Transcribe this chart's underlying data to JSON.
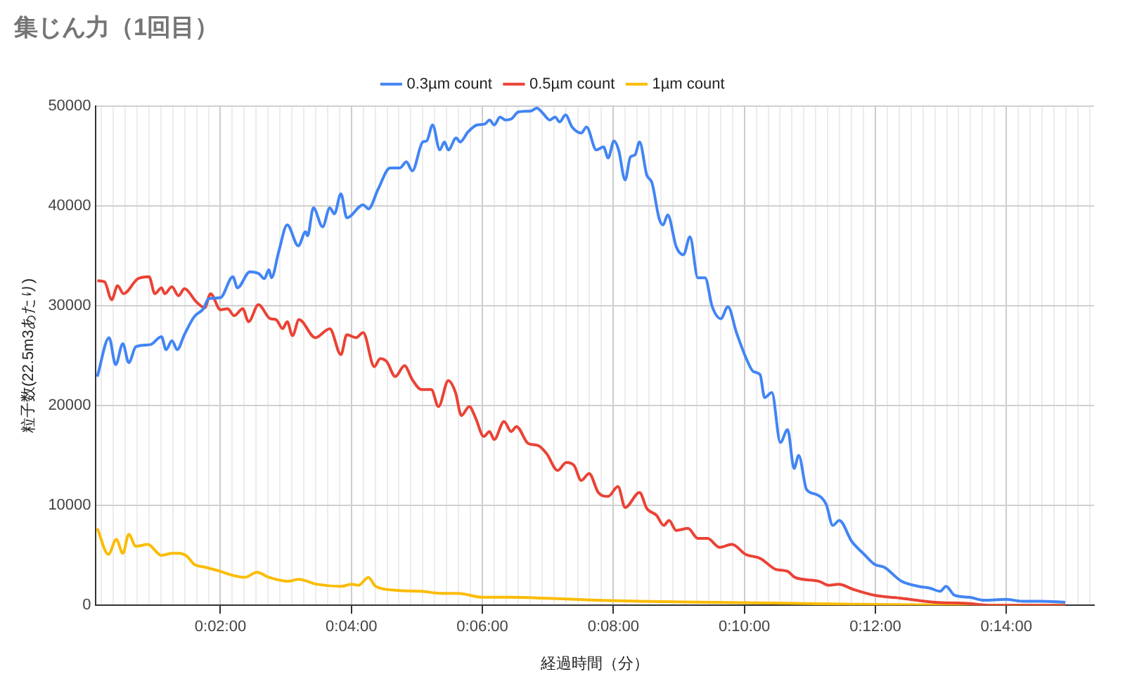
{
  "chart_data": {
    "type": "line",
    "title": "集じん力（1回目）",
    "xlabel": "経過時間（分）",
    "ylabel": "粒子数(22.5m3あたり)",
    "xlim": [
      0.09,
      15.34
    ],
    "ylim": [
      0,
      50000
    ],
    "yticks": [
      0,
      10000,
      20000,
      30000,
      40000,
      50000
    ],
    "xticks": [
      {
        "value": 0.182,
        "label": null
      },
      {
        "value": 0.364,
        "label": null
      },
      {
        "value": 0.545,
        "label": null
      },
      {
        "value": 0.727,
        "label": null
      },
      {
        "value": 0.909,
        "label": null
      },
      {
        "value": 1.091,
        "label": null
      },
      {
        "value": 1.273,
        "label": null
      },
      {
        "value": 1.455,
        "label": null
      },
      {
        "value": 1.636,
        "label": null
      },
      {
        "value": 1.818,
        "label": null
      },
      {
        "value": 2,
        "label": "0:02:00"
      },
      {
        "value": 2.182,
        "label": null
      },
      {
        "value": 2.364,
        "label": null
      },
      {
        "value": 2.545,
        "label": null
      },
      {
        "value": 2.727,
        "label": null
      },
      {
        "value": 2.909,
        "label": null
      },
      {
        "value": 3.091,
        "label": null
      },
      {
        "value": 3.273,
        "label": null
      },
      {
        "value": 3.455,
        "label": null
      },
      {
        "value": 3.636,
        "label": null
      },
      {
        "value": 3.818,
        "label": null
      },
      {
        "value": 4,
        "label": "0:04:00"
      },
      {
        "value": 4.182,
        "label": null
      },
      {
        "value": 4.364,
        "label": null
      },
      {
        "value": 4.545,
        "label": null
      },
      {
        "value": 4.727,
        "label": null
      },
      {
        "value": 4.909,
        "label": null
      },
      {
        "value": 5.091,
        "label": null
      },
      {
        "value": 5.273,
        "label": null
      },
      {
        "value": 5.455,
        "label": null
      },
      {
        "value": 5.636,
        "label": null
      },
      {
        "value": 5.818,
        "label": null
      },
      {
        "value": 6,
        "label": "0:06:00"
      },
      {
        "value": 6.182,
        "label": null
      },
      {
        "value": 6.364,
        "label": null
      },
      {
        "value": 6.545,
        "label": null
      },
      {
        "value": 6.727,
        "label": null
      },
      {
        "value": 6.909,
        "label": null
      },
      {
        "value": 7.091,
        "label": null
      },
      {
        "value": 7.273,
        "label": null
      },
      {
        "value": 7.455,
        "label": null
      },
      {
        "value": 7.636,
        "label": null
      },
      {
        "value": 7.818,
        "label": null
      },
      {
        "value": 8,
        "label": "0:08:00"
      },
      {
        "value": 8.182,
        "label": null
      },
      {
        "value": 8.364,
        "label": null
      },
      {
        "value": 8.545,
        "label": null
      },
      {
        "value": 8.727,
        "label": null
      },
      {
        "value": 8.909,
        "label": null
      },
      {
        "value": 9.091,
        "label": null
      },
      {
        "value": 9.273,
        "label": null
      },
      {
        "value": 9.455,
        "label": null
      },
      {
        "value": 9.636,
        "label": null
      },
      {
        "value": 9.818,
        "label": null
      },
      {
        "value": 10,
        "label": "0:10:00"
      },
      {
        "value": 10.182,
        "label": null
      },
      {
        "value": 10.364,
        "label": null
      },
      {
        "value": 10.545,
        "label": null
      },
      {
        "value": 10.727,
        "label": null
      },
      {
        "value": 10.909,
        "label": null
      },
      {
        "value": 11.091,
        "label": null
      },
      {
        "value": 11.273,
        "label": null
      },
      {
        "value": 11.455,
        "label": null
      },
      {
        "value": 11.636,
        "label": null
      },
      {
        "value": 11.818,
        "label": null
      },
      {
        "value": 12,
        "label": "0:12:00"
      },
      {
        "value": 12.182,
        "label": null
      },
      {
        "value": 12.364,
        "label": null
      },
      {
        "value": 12.545,
        "label": null
      },
      {
        "value": 12.727,
        "label": null
      },
      {
        "value": 12.909,
        "label": null
      },
      {
        "value": 13.091,
        "label": null
      },
      {
        "value": 13.273,
        "label": null
      },
      {
        "value": 13.455,
        "label": null
      },
      {
        "value": 13.636,
        "label": null
      },
      {
        "value": 13.818,
        "label": null
      },
      {
        "value": 14,
        "label": "0:14:00"
      },
      {
        "value": 14.182,
        "label": null
      },
      {
        "value": 14.364,
        "label": null
      },
      {
        "value": 14.545,
        "label": null
      },
      {
        "value": 14.727,
        "label": null
      },
      {
        "value": 14.909,
        "label": null
      },
      {
        "value": 15.091,
        "label": null
      },
      {
        "value": 15.273,
        "label": null
      }
    ],
    "grid": true,
    "legend": "top",
    "marker": "none",
    "line_style": "solid",
    "series": [
      {
        "name": "0.3µm count",
        "color": "#4285f4",
        "x": [
          0.12,
          0.3,
          0.4,
          0.51,
          0.6,
          0.71,
          0.93,
          1.1,
          1.17,
          1.26,
          1.34,
          1.45,
          1.6,
          1.74,
          1.82,
          2.0,
          2.19,
          2.26,
          2.45,
          2.59,
          2.67,
          2.74,
          2.78,
          2.89,
          3.02,
          3.19,
          3.3,
          3.33,
          3.42,
          3.56,
          3.67,
          3.74,
          3.84,
          3.93,
          4.18,
          4.26,
          4.41,
          4.59,
          4.74,
          4.84,
          4.93,
          5.09,
          5.15,
          5.24,
          5.35,
          5.42,
          5.48,
          5.6,
          5.66,
          5.78,
          5.92,
          6.04,
          6.11,
          6.18,
          6.27,
          6.35,
          6.44,
          6.55,
          6.74,
          6.83,
          6.92,
          7.03,
          7.11,
          7.18,
          7.27,
          7.37,
          7.51,
          7.59,
          7.74,
          7.85,
          7.92,
          8.01,
          8.08,
          8.18,
          8.26,
          8.33,
          8.4,
          8.51,
          8.59,
          8.7,
          8.76,
          8.83,
          8.96,
          9.07,
          9.17,
          9.29,
          9.4,
          9.51,
          9.64,
          9.75,
          9.88,
          10.03,
          10.14,
          10.24,
          10.31,
          10.42,
          10.55,
          10.66,
          10.76,
          10.83,
          10.95,
          11.1,
          11.25,
          11.35,
          11.45,
          11.64,
          11.83,
          11.99,
          12.14,
          12.4,
          12.66,
          12.84,
          12.99,
          13.08,
          13.21,
          13.44,
          13.66,
          13.99,
          14.25,
          14.54,
          14.9
        ],
        "values": [
          22900,
          26800,
          24100,
          26200,
          24300,
          25900,
          26100,
          26900,
          25600,
          26500,
          25600,
          27100,
          28900,
          29700,
          30700,
          30800,
          32900,
          31800,
          33400,
          33200,
          32700,
          33600,
          32800,
          35400,
          38100,
          36000,
          37400,
          37000,
          39800,
          37900,
          39800,
          39200,
          41200,
          38800,
          40100,
          39700,
          41700,
          43800,
          43800,
          44400,
          43500,
          46400,
          46500,
          48100,
          45600,
          46400,
          45600,
          46800,
          46400,
          47400,
          48100,
          48200,
          48600,
          48100,
          48900,
          48600,
          48700,
          49400,
          49500,
          49800,
          49300,
          48600,
          48900,
          48400,
          49100,
          47900,
          47300,
          47900,
          45600,
          45900,
          44800,
          46500,
          45600,
          42600,
          44900,
          45100,
          46400,
          43100,
          42300,
          38700,
          38100,
          39100,
          35900,
          35100,
          36900,
          32800,
          32800,
          29900,
          28700,
          29900,
          27300,
          24700,
          23400,
          23100,
          20800,
          21300,
          16300,
          17600,
          13700,
          15000,
          11600,
          11100,
          10100,
          8000,
          8500,
          6400,
          5100,
          4100,
          3800,
          2400,
          1900,
          1700,
          1400,
          1900,
          1000,
          800,
          500,
          600,
          400,
          400,
          300
        ]
      },
      {
        "name": "0.5µm count",
        "color": "#ea4335",
        "x": [
          0.12,
          0.23,
          0.34,
          0.43,
          0.52,
          0.74,
          0.91,
          1.0,
          1.1,
          1.15,
          1.26,
          1.36,
          1.45,
          1.63,
          1.76,
          1.85,
          2.0,
          2.11,
          2.21,
          2.34,
          2.43,
          2.58,
          2.76,
          2.85,
          2.95,
          3.02,
          3.1,
          3.2,
          3.45,
          3.67,
          3.84,
          3.93,
          4.07,
          4.18,
          4.35,
          4.44,
          4.54,
          4.67,
          4.81,
          4.93,
          5.07,
          5.22,
          5.33,
          5.48,
          5.59,
          5.68,
          5.8,
          5.9,
          6.02,
          6.11,
          6.18,
          6.33,
          6.44,
          6.52,
          6.7,
          6.85,
          6.98,
          7.15,
          7.28,
          7.4,
          7.51,
          7.63,
          7.77,
          7.92,
          8.07,
          8.18,
          8.4,
          8.51,
          8.66,
          8.77,
          8.85,
          8.96,
          9.14,
          9.29,
          9.44,
          9.62,
          9.81,
          10.02,
          10.24,
          10.48,
          10.66,
          10.77,
          11.14,
          11.29,
          11.44,
          11.66,
          11.99,
          12.4,
          12.92,
          13.36,
          13.81,
          14.9
        ],
        "values": [
          32500,
          32400,
          30600,
          32000,
          31200,
          32700,
          32900,
          31200,
          31800,
          31200,
          31900,
          31000,
          31700,
          30400,
          29800,
          31200,
          29600,
          29700,
          29000,
          29700,
          28400,
          30100,
          28700,
          28600,
          27700,
          28400,
          27000,
          28600,
          26800,
          27700,
          25100,
          27100,
          26800,
          27300,
          23900,
          24700,
          24400,
          22900,
          24000,
          22600,
          21600,
          21600,
          19900,
          22500,
          21300,
          19000,
          19900,
          18700,
          16900,
          17400,
          16600,
          18400,
          17400,
          17900,
          16200,
          16000,
          15200,
          13500,
          14300,
          14000,
          12500,
          13200,
          11300,
          10900,
          11900,
          9800,
          11300,
          9700,
          9000,
          8000,
          8500,
          7500,
          7700,
          6700,
          6700,
          5800,
          6100,
          5100,
          4700,
          3600,
          3400,
          2800,
          2400,
          2000,
          2100,
          1600,
          1000,
          700,
          300,
          200,
          0,
          0
        ]
      },
      {
        "name": "1µm count",
        "color": "#fbbc04",
        "x": [
          0.12,
          0.29,
          0.41,
          0.51,
          0.6,
          0.71,
          0.89,
          1.1,
          1.26,
          1.37,
          1.49,
          1.6,
          1.78,
          2.0,
          2.19,
          2.37,
          2.56,
          2.74,
          3.04,
          3.19,
          3.48,
          3.85,
          4.0,
          4.11,
          4.26,
          4.37,
          4.7,
          5.07,
          5.37,
          5.63,
          6.0,
          6.4,
          7.0,
          7.74,
          8.4,
          9.51,
          10.62,
          11.66,
          13.66,
          14.9
        ],
        "values": [
          7700,
          5100,
          6600,
          5200,
          7100,
          5900,
          6100,
          5000,
          5200,
          5200,
          4900,
          4100,
          3800,
          3400,
          3000,
          2800,
          3300,
          2800,
          2400,
          2600,
          2100,
          1900,
          2100,
          2000,
          2800,
          1900,
          1500,
          1400,
          1200,
          1200,
          800,
          800,
          700,
          500,
          400,
          300,
          200,
          100,
          0,
          0
        ]
      }
    ]
  }
}
